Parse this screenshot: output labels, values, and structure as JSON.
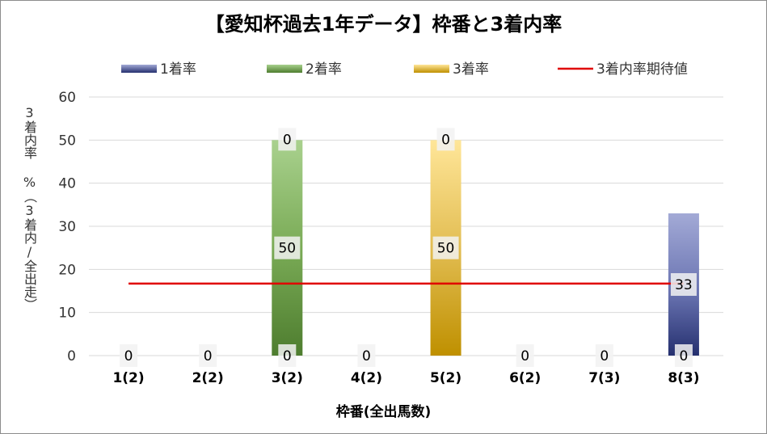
{
  "chart_data": {
    "type": "bar",
    "title": "【愛知杯過去1年データ】枠番と3着内率",
    "xlabel": "枠番(全出馬数)",
    "ylabel": "3着内率 %（3着内/全出走）",
    "categories": [
      "1(2)",
      "2(2)",
      "3(2)",
      "4(2)",
      "5(2)",
      "6(2)",
      "7(3)",
      "8(3)"
    ],
    "stacked": true,
    "ylim": [
      0,
      60
    ],
    "yticks": [
      0,
      10,
      20,
      30,
      40,
      50,
      60
    ],
    "grid": true,
    "legend_position": "top",
    "series": [
      {
        "name": "1着率",
        "kind": "bar",
        "color": "#2a3475",
        "values": [
          0,
          0,
          0,
          0,
          0,
          0,
          0,
          33
        ]
      },
      {
        "name": "2着率",
        "kind": "bar",
        "color": "#548235",
        "values": [
          0,
          0,
          50,
          0,
          0,
          0,
          0,
          0
        ]
      },
      {
        "name": "3着率",
        "kind": "bar",
        "color": "#c29a0f",
        "values": [
          0,
          0,
          0,
          0,
          50,
          0,
          0,
          0
        ]
      },
      {
        "name": "3着内率期待値",
        "kind": "line",
        "color": "#e00000",
        "value": 16.7
      }
    ],
    "data_labels": [
      {
        "category": "1(2)",
        "text": "0"
      },
      {
        "category": "2(2)",
        "text": "0"
      },
      {
        "category": "3(2)",
        "text": "0",
        "anchor": "bottom"
      },
      {
        "category": "3(2)",
        "text": "50",
        "anchor": "middle"
      },
      {
        "category": "3(2)",
        "text": "0",
        "anchor": "top"
      },
      {
        "category": "4(2)",
        "text": "0"
      },
      {
        "category": "5(2)",
        "text": "50",
        "anchor": "middle"
      },
      {
        "category": "5(2)",
        "text": "0",
        "anchor": "top"
      },
      {
        "category": "6(2)",
        "text": "0"
      },
      {
        "category": "7(3)",
        "text": "0"
      },
      {
        "category": "8(3)",
        "text": "33",
        "anchor": "middle"
      },
      {
        "category": "8(3)",
        "text": "0",
        "anchor": "bottom"
      }
    ]
  }
}
